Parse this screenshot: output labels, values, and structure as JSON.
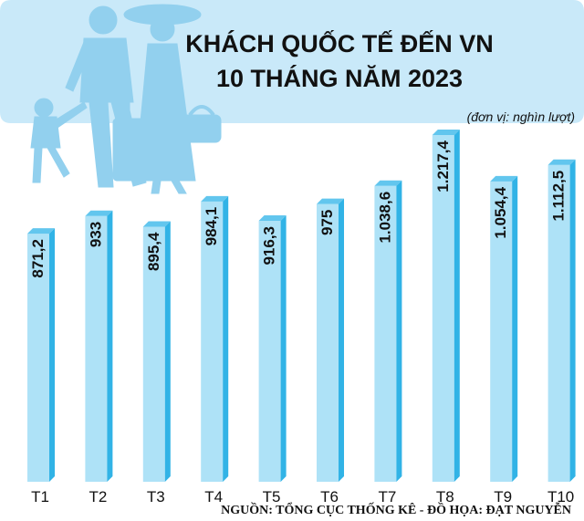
{
  "colors": {
    "banner": "#c9e9f9",
    "bar_front": "#aee2f7",
    "bar_side": "#31b3e6",
    "bar_top": "#62c6ee",
    "illustration": "#92d0ee"
  },
  "chart_data": {
    "type": "bar",
    "title": [
      "KHÁCH QUỐC TẾ ĐẾN VN",
      "10 THÁNG NĂM 2023"
    ],
    "unit": "(đơn vị: nghìn lượt)",
    "categories": [
      "T1",
      "T2",
      "T3",
      "T4",
      "T5",
      "T6",
      "T7",
      "T8",
      "T9",
      "T10"
    ],
    "values": [
      871.2,
      933,
      895.4,
      984.1,
      916.3,
      975,
      1038.6,
      1217.4,
      1054.4,
      1112.5
    ],
    "value_labels": [
      "871,2",
      "933",
      "895,4",
      "984,1",
      "916,3",
      "975",
      "1.038,6",
      "1.217,4",
      "1.054,4",
      "1.112,5"
    ],
    "ylim": [
      0,
      1217.4
    ],
    "grid": false,
    "legend": "none"
  },
  "source": "NGUỒN: TỔNG CỤC THỐNG KÊ - ĐỒ HỌA: ĐẠT NGUYỄN"
}
